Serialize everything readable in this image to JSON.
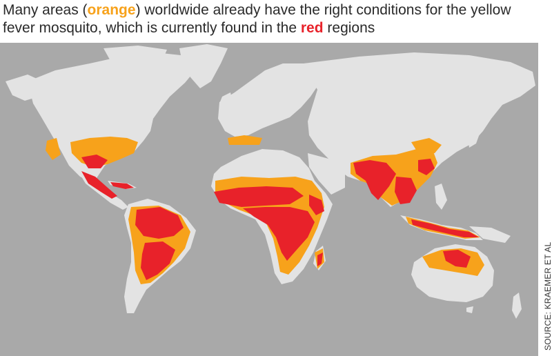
{
  "title": {
    "part1": "Many areas (",
    "orange_word": "orange",
    "part2": ") worldwide already have the right conditions for the yellow fever mosquito, which is currently found in the ",
    "red_word": "red",
    "part3": " regions"
  },
  "source": "SOURCE: KRAEMER ET AL",
  "legend": {
    "suitable_color": "#f7a21b",
    "current_color": "#e8222a",
    "land_color": "#e3e3e3",
    "ocean_color": "#a9a9a9"
  }
}
